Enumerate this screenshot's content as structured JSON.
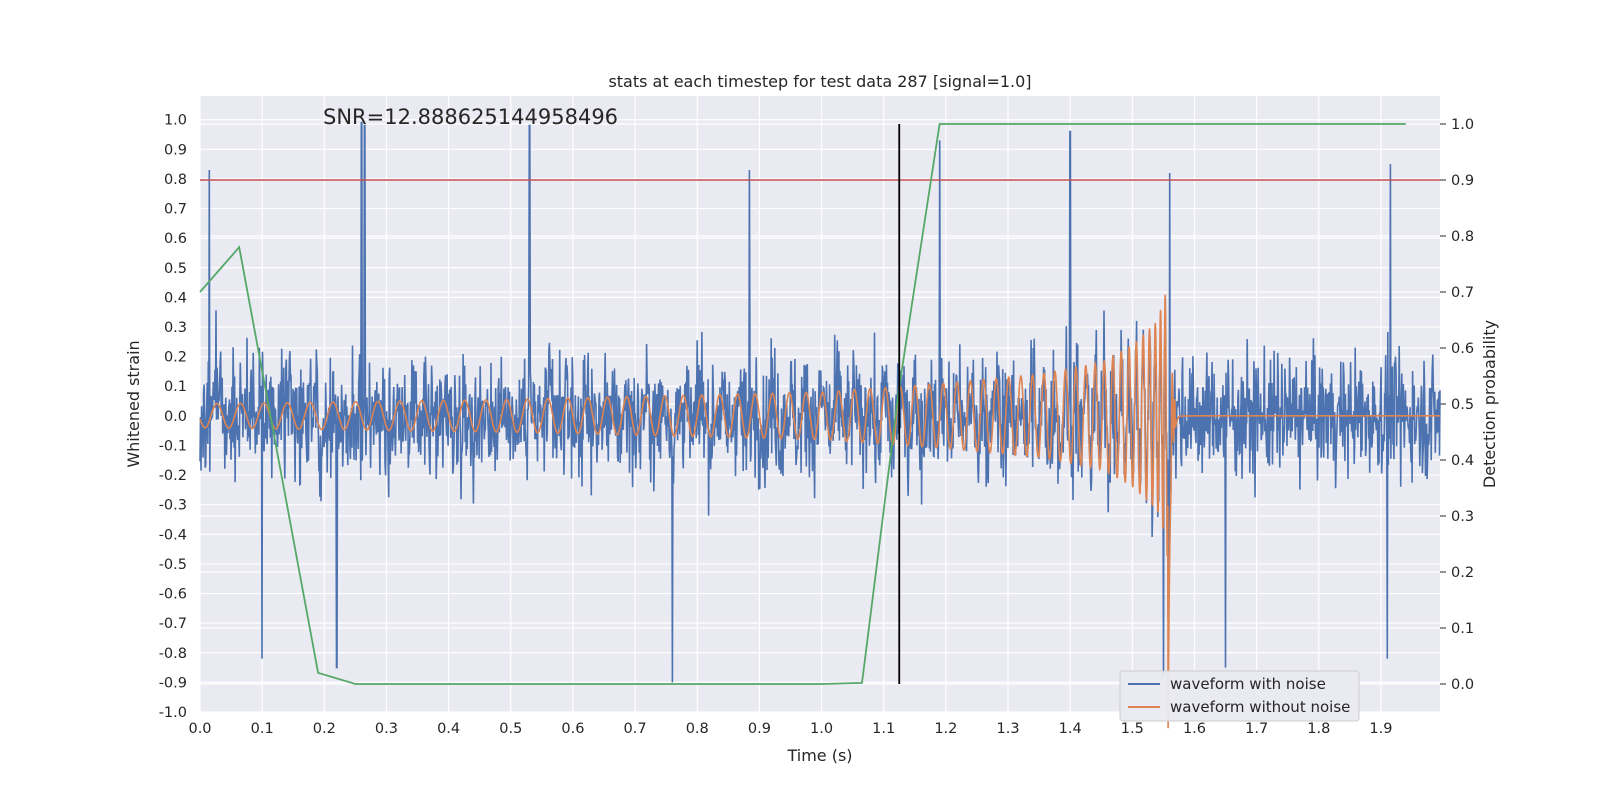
{
  "chart_data": {
    "type": "line",
    "title": "stats at each timestep for test data 287 [signal=1.0]",
    "annotation": "SNR=12.888625144958496",
    "xlabel": "Time (s)",
    "ylabel": "Whitened strain",
    "y2label": "Detection probability",
    "xlim": [
      0.0,
      1.995
    ],
    "ylim": [
      -1.0,
      1.08
    ],
    "y2lim": [
      -0.05,
      1.05
    ],
    "x_ticks": [
      "0.0",
      "0.1",
      "0.2",
      "0.3",
      "0.4",
      "0.5",
      "0.6",
      "0.7",
      "0.8",
      "0.9",
      "1.0",
      "1.1",
      "1.2",
      "1.3",
      "1.4",
      "1.5",
      "1.6",
      "1.7",
      "1.8",
      "1.9"
    ],
    "y_ticks": [
      "1.0",
      "0.9",
      "0.8",
      "0.7",
      "0.6",
      "0.5",
      "0.4",
      "0.3",
      "0.2",
      "0.1",
      "0.0",
      "-0.1",
      "-0.2",
      "-0.3",
      "-0.4",
      "-0.5",
      "-0.6",
      "-0.7",
      "-0.8",
      "-0.9",
      "-1.0"
    ],
    "y2_ticks": [
      "1.0",
      "0.9",
      "0.8",
      "0.7",
      "0.6",
      "0.5",
      "0.4",
      "0.3",
      "0.2",
      "0.1",
      "0.0"
    ],
    "grid": true,
    "legend_position": "lower-right",
    "series": [
      {
        "name": "waveform with noise",
        "color": "#4c72b0",
        "axis": "left",
        "description": "whitened strain with noise, approx. white noise with std ~0.22 and spikes near +/-1",
        "spikes": [
          [
            0.015,
            0.83
          ],
          [
            0.1,
            -0.82
          ],
          [
            0.26,
            0.99
          ],
          [
            0.265,
            0.98
          ],
          [
            0.22,
            -0.85
          ],
          [
            0.53,
            0.98
          ],
          [
            0.76,
            -0.9
          ],
          [
            0.884,
            0.83
          ],
          [
            1.19,
            0.93
          ],
          [
            1.4,
            0.96
          ],
          [
            1.56,
            0.82
          ],
          [
            1.55,
            -0.88
          ],
          [
            1.65,
            -0.85
          ],
          [
            1.915,
            0.85
          ],
          [
            1.91,
            -0.82
          ]
        ]
      },
      {
        "name": "waveform without noise",
        "color": "#dd8452",
        "axis": "left",
        "description": "chirp signal, amplitude rising to ~0.43 near t=1.56s then ringdown to 0",
        "envelope": [
          [
            0.0,
            0.04
          ],
          [
            0.5,
            0.055
          ],
          [
            1.0,
            0.08
          ],
          [
            1.2,
            0.11
          ],
          [
            1.35,
            0.14
          ],
          [
            1.45,
            0.18
          ],
          [
            1.5,
            0.24
          ],
          [
            1.54,
            0.32
          ],
          [
            1.555,
            0.43
          ],
          [
            1.56,
            -0.67
          ],
          [
            1.575,
            0.03
          ],
          [
            1.6,
            0.0
          ],
          [
            1.995,
            0.0
          ]
        ]
      },
      {
        "name": "",
        "color": "#55a868",
        "axis": "right",
        "x": [
          0.0,
          0.063,
          0.19,
          0.25,
          1.0,
          1.065,
          1.125,
          1.19,
          1.94
        ],
        "y": [
          0.7,
          0.78,
          0.02,
          0.0,
          0.0,
          0.002,
          0.53,
          1.0,
          1.0
        ]
      }
    ],
    "threshold": {
      "y2": 0.9,
      "color": "#c44e52"
    },
    "vline": {
      "x": 1.125,
      "color": "#000000"
    }
  }
}
